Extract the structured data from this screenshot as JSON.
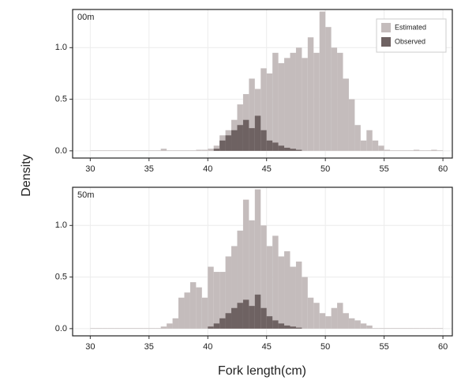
{
  "ylabel": "Density",
  "xlabel": "Fork length(cm)",
  "chart_data": [
    {
      "type": "histogram",
      "label": "00m",
      "legend": "upper right",
      "grid": true,
      "bins": [
        30,
        30.5,
        31,
        31.5,
        32,
        32.5,
        33,
        33.5,
        34,
        34.5,
        35,
        35.5,
        36,
        36.5,
        37,
        37.5,
        38,
        38.5,
        39,
        39.5,
        40,
        40.5,
        41,
        41.5,
        42,
        42.5,
        43,
        43.5,
        44,
        44.5,
        45,
        45.5,
        46,
        46.5,
        47,
        47.5,
        48,
        48.5,
        49,
        49.5,
        50,
        50.5,
        51,
        51.5,
        52,
        52.5,
        53,
        53.5,
        54,
        54.5,
        55,
        55.5,
        56,
        56.5,
        57,
        57.5,
        58,
        58.5,
        59,
        59.5,
        60
      ],
      "series": [
        {
          "name": "Estimated",
          "color": "#c4bcbc",
          "values": [
            0.005,
            0.005,
            0.005,
            0.005,
            0.005,
            0.005,
            0.005,
            0.005,
            0.005,
            0.005,
            0.005,
            0.005,
            0.02,
            0.005,
            0.005,
            0.005,
            0.005,
            0.005,
            0.01,
            0.01,
            0.02,
            0.05,
            0.15,
            0.2,
            0.3,
            0.45,
            0.55,
            0.7,
            0.6,
            0.8,
            0.75,
            0.95,
            0.85,
            0.9,
            0.95,
            1.0,
            0.9,
            1.1,
            0.95,
            1.35,
            1.2,
            1.0,
            0.95,
            0.7,
            0.5,
            0.25,
            0.1,
            0.2,
            0.1,
            0.05,
            0.01,
            0.005,
            0.005,
            0.005,
            0.005,
            0.01,
            0.005,
            0.005,
            0.01,
            0.005
          ]
        },
        {
          "name": "Observed",
          "color": "#6e6262",
          "values": [
            0,
            0,
            0,
            0,
            0,
            0,
            0,
            0,
            0,
            0,
            0,
            0,
            0,
            0,
            0,
            0,
            0,
            0,
            0,
            0,
            0,
            0.02,
            0.1,
            0.15,
            0.2,
            0.25,
            0.3,
            0.22,
            0.34,
            0.2,
            0.1,
            0.08,
            0.05,
            0.03,
            0.02,
            0.01,
            0,
            0,
            0,
            0,
            0,
            0,
            0,
            0,
            0,
            0,
            0,
            0,
            0,
            0,
            0,
            0,
            0,
            0,
            0,
            0,
            0,
            0,
            0,
            0
          ]
        }
      ],
      "xlim": [
        28.5,
        60.8
      ],
      "xticks": [
        30,
        35,
        40,
        45,
        50,
        55,
        60
      ],
      "ylim": [
        -0.07,
        1.37
      ],
      "yticks": [
        {
          "value": 0,
          "label": "0.0"
        },
        0.5,
        {
          "value": 1,
          "label": "1.0"
        }
      ]
    },
    {
      "type": "histogram",
      "label": "50m",
      "grid": true,
      "bins": [
        30,
        30.5,
        31,
        31.5,
        32,
        32.5,
        33,
        33.5,
        34,
        34.5,
        35,
        35.5,
        36,
        36.5,
        37,
        37.5,
        38,
        38.5,
        39,
        39.5,
        40,
        40.5,
        41,
        41.5,
        42,
        42.5,
        43,
        43.5,
        44,
        44.5,
        45,
        45.5,
        46,
        46.5,
        47,
        47.5,
        48,
        48.5,
        49,
        49.5,
        50,
        50.5,
        51,
        51.5,
        52,
        52.5,
        53,
        53.5,
        54,
        54.5,
        55,
        55.5,
        56,
        56.5,
        57,
        57.5,
        58,
        58.5,
        59,
        59.5,
        60
      ],
      "series": [
        {
          "name": "Estimated",
          "color": "#c4bcbc",
          "values": [
            0.005,
            0.005,
            0.005,
            0.005,
            0.005,
            0.005,
            0.005,
            0.005,
            0.005,
            0.005,
            0.005,
            0.005,
            0.02,
            0.05,
            0.1,
            0.3,
            0.35,
            0.45,
            0.4,
            0.3,
            0.6,
            0.55,
            0.55,
            0.7,
            0.8,
            0.95,
            1.25,
            1.05,
            1.35,
            1.0,
            0.8,
            0.9,
            0.7,
            0.75,
            0.6,
            0.65,
            0.5,
            0.3,
            0.25,
            0.15,
            0.12,
            0.2,
            0.25,
            0.15,
            0.1,
            0.08,
            0.05,
            0.03,
            0.005,
            0.005,
            0.005,
            0.005,
            0.005,
            0.005,
            0.005,
            0.005,
            0.005,
            0.005,
            0.005,
            0.005
          ]
        },
        {
          "name": "Observed",
          "color": "#6e6262",
          "values": [
            0,
            0,
            0,
            0,
            0,
            0,
            0,
            0,
            0,
            0,
            0,
            0,
            0,
            0,
            0,
            0,
            0,
            0,
            0,
            0,
            0.02,
            0.05,
            0.1,
            0.15,
            0.2,
            0.25,
            0.28,
            0.22,
            0.33,
            0.2,
            0.12,
            0.08,
            0.05,
            0.03,
            0.02,
            0.01,
            0,
            0,
            0,
            0,
            0,
            0,
            0,
            0,
            0,
            0,
            0,
            0,
            0,
            0,
            0,
            0,
            0,
            0,
            0,
            0,
            0,
            0,
            0,
            0
          ]
        }
      ],
      "xlim": [
        28.5,
        60.8
      ],
      "xticks": [
        30,
        35,
        40,
        45,
        50,
        55,
        60
      ],
      "ylim": [
        -0.07,
        1.37
      ],
      "yticks": [
        {
          "value": 0,
          "label": "0.0"
        },
        0.5,
        {
          "value": 1,
          "label": "1.0"
        }
      ]
    }
  ]
}
